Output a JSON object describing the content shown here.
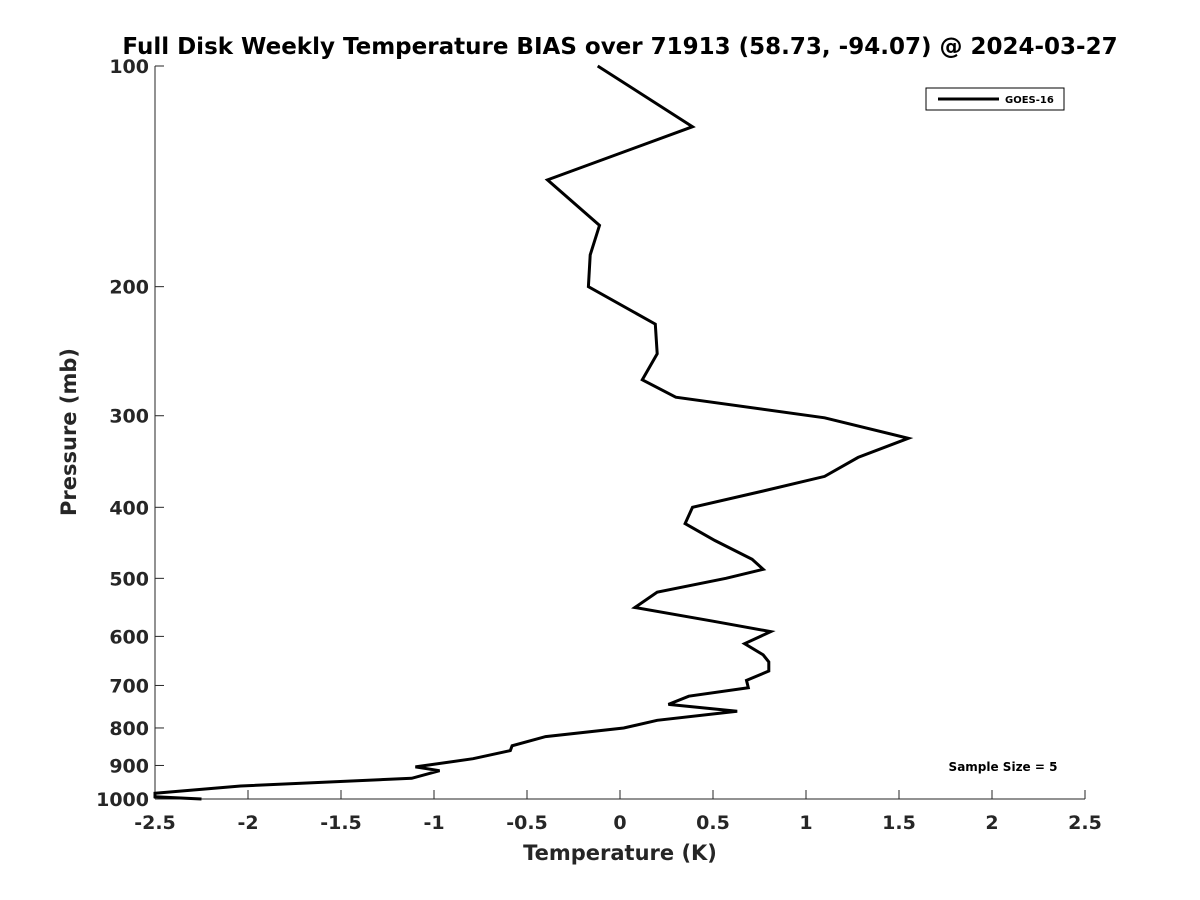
{
  "chart_data": {
    "type": "line",
    "title": "Full Disk Weekly Temperature BIAS over 71913 (58.73, -94.07) @ 2024-03-27",
    "xlabel": "Temperature (K)",
    "ylabel": "Pressure (mb)",
    "xlim": [
      -2.5,
      2.5
    ],
    "ylim": [
      100,
      1000
    ],
    "y_scale": "log",
    "y_reversed": true,
    "grid": false,
    "legend_position": "top-right",
    "x_ticks": [
      -2.5,
      -2,
      -1.5,
      -1,
      -0.5,
      0,
      0.5,
      1,
      1.5,
      2,
      2.5
    ],
    "x_tick_labels": [
      "-2.5",
      "-2",
      "-1.5",
      "-1",
      "-0.5",
      "0",
      "0.5",
      "1",
      "1.5",
      "2",
      "2.5"
    ],
    "y_ticks": [
      100,
      200,
      300,
      400,
      500,
      600,
      700,
      800,
      900,
      1000
    ],
    "y_tick_labels": [
      "100",
      "200",
      "300",
      "400",
      "500",
      "600",
      "700",
      "800",
      "900",
      "1000"
    ],
    "annotation": "Sample Size = 5",
    "series": [
      {
        "name": "GOES-16",
        "color": "#000000",
        "points": [
          {
            "x": -0.12,
            "y": 100
          },
          {
            "x": 0.39,
            "y": 121
          },
          {
            "x": -0.39,
            "y": 143
          },
          {
            "x": -0.11,
            "y": 165
          },
          {
            "x": -0.16,
            "y": 181
          },
          {
            "x": -0.17,
            "y": 200
          },
          {
            "x": 0.19,
            "y": 225
          },
          {
            "x": 0.2,
            "y": 247
          },
          {
            "x": 0.12,
            "y": 268
          },
          {
            "x": 0.3,
            "y": 283
          },
          {
            "x": 1.1,
            "y": 302
          },
          {
            "x": 1.55,
            "y": 322
          },
          {
            "x": 1.28,
            "y": 342
          },
          {
            "x": 1.1,
            "y": 363
          },
          {
            "x": 0.77,
            "y": 380
          },
          {
            "x": 0.39,
            "y": 400
          },
          {
            "x": 0.35,
            "y": 421
          },
          {
            "x": 0.51,
            "y": 444
          },
          {
            "x": 0.71,
            "y": 471
          },
          {
            "x": 0.77,
            "y": 486
          },
          {
            "x": 0.57,
            "y": 500
          },
          {
            "x": 0.2,
            "y": 522
          },
          {
            "x": 0.08,
            "y": 548
          },
          {
            "x": 0.5,
            "y": 572
          },
          {
            "x": 0.81,
            "y": 591
          },
          {
            "x": 0.67,
            "y": 614
          },
          {
            "x": 0.77,
            "y": 636
          },
          {
            "x": 0.8,
            "y": 650
          },
          {
            "x": 0.8,
            "y": 669
          },
          {
            "x": 0.68,
            "y": 689
          },
          {
            "x": 0.69,
            "y": 705
          },
          {
            "x": 0.37,
            "y": 724
          },
          {
            "x": 0.26,
            "y": 743
          },
          {
            "x": 0.63,
            "y": 759
          },
          {
            "x": 0.2,
            "y": 781
          },
          {
            "x": 0.02,
            "y": 800
          },
          {
            "x": -0.4,
            "y": 822
          },
          {
            "x": -0.58,
            "y": 846
          },
          {
            "x": -0.59,
            "y": 859
          },
          {
            "x": -0.79,
            "y": 881
          },
          {
            "x": -1.1,
            "y": 904
          },
          {
            "x": -0.97,
            "y": 915
          },
          {
            "x": -1.12,
            "y": 937
          },
          {
            "x": -2.04,
            "y": 960
          },
          {
            "x": -2.5,
            "y": 982
          },
          {
            "x": -2.5,
            "y": 993
          },
          {
            "x": -2.25,
            "y": 1000
          }
        ]
      }
    ]
  }
}
